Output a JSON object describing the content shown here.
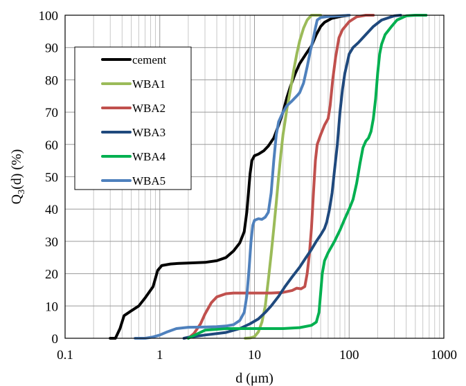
{
  "chart_data": {
    "type": "line",
    "title": "",
    "xlabel": "d (μm)",
    "ylabel": "Q3(d) (%)",
    "xscale": "log",
    "xlim": [
      0.1,
      1000
    ],
    "ylim": [
      0,
      100
    ],
    "x_ticks": [
      "0.1",
      "1",
      "10",
      "100",
      "1000"
    ],
    "y_ticks": [
      "0",
      "10",
      "20",
      "30",
      "40",
      "50",
      "60",
      "70",
      "80",
      "90",
      "100"
    ],
    "grid": true,
    "legend_position": "upper-left",
    "series": [
      {
        "name": "cement",
        "color": "#000000",
        "points": [
          [
            0.3,
            0
          ],
          [
            0.34,
            0
          ],
          [
            0.38,
            3
          ],
          [
            0.42,
            7
          ],
          [
            0.5,
            8.5
          ],
          [
            0.6,
            10
          ],
          [
            0.7,
            12.5
          ],
          [
            0.85,
            16
          ],
          [
            0.95,
            21
          ],
          [
            1.05,
            22.5
          ],
          [
            1.3,
            23
          ],
          [
            1.6,
            23.2
          ],
          [
            2,
            23.3
          ],
          [
            3,
            23.5
          ],
          [
            4,
            24
          ],
          [
            5,
            25
          ],
          [
            6,
            27
          ],
          [
            7,
            29.5
          ],
          [
            7.8,
            33
          ],
          [
            8.3,
            39
          ],
          [
            8.7,
            46
          ],
          [
            9,
            51
          ],
          [
            9.4,
            55
          ],
          [
            10,
            56.5
          ],
          [
            11,
            57
          ],
          [
            12.5,
            58
          ],
          [
            14,
            59.5
          ],
          [
            16,
            62
          ],
          [
            18,
            66
          ],
          [
            20,
            70
          ],
          [
            22,
            74.5
          ],
          [
            24,
            78
          ],
          [
            27,
            82
          ],
          [
            30,
            85
          ],
          [
            35,
            88
          ],
          [
            40,
            90.5
          ],
          [
            45,
            94
          ],
          [
            50,
            96.5
          ],
          [
            55,
            97.8
          ],
          [
            65,
            99
          ],
          [
            80,
            99.6
          ],
          [
            100,
            100
          ]
        ]
      },
      {
        "name": "WBA1",
        "color": "#9BBB59",
        "points": [
          [
            8,
            0
          ],
          [
            9,
            0.1
          ],
          [
            10,
            0.5
          ],
          [
            11,
            2
          ],
          [
            12,
            5
          ],
          [
            13,
            10
          ],
          [
            14,
            18
          ],
          [
            15,
            26
          ],
          [
            16,
            34
          ],
          [
            17,
            42
          ],
          [
            18,
            50
          ],
          [
            19,
            57
          ],
          [
            20,
            63
          ],
          [
            21,
            67
          ],
          [
            22,
            71
          ],
          [
            24,
            77
          ],
          [
            26,
            83
          ],
          [
            28,
            88
          ],
          [
            30,
            92
          ],
          [
            33,
            96
          ],
          [
            36,
            98.5
          ],
          [
            40,
            100
          ],
          [
            50,
            100
          ]
        ]
      },
      {
        "name": "WBA2",
        "color": "#C0504D",
        "points": [
          [
            2,
            0
          ],
          [
            2.3,
            1.5
          ],
          [
            2.7,
            4.5
          ],
          [
            3,
            7.5
          ],
          [
            3.5,
            11
          ],
          [
            4,
            12.8
          ],
          [
            5,
            13.8
          ],
          [
            6,
            14
          ],
          [
            8,
            14
          ],
          [
            10,
            14
          ],
          [
            15,
            14
          ],
          [
            20,
            14.2
          ],
          [
            25,
            14.8
          ],
          [
            28,
            15.5
          ],
          [
            31,
            15.3
          ],
          [
            34,
            16
          ],
          [
            36,
            20
          ],
          [
            38,
            26
          ],
          [
            40,
            34
          ],
          [
            42,
            45
          ],
          [
            44,
            55
          ],
          [
            46,
            60
          ],
          [
            50,
            63
          ],
          [
            55,
            66
          ],
          [
            60,
            68
          ],
          [
            63,
            72
          ],
          [
            67,
            80
          ],
          [
            72,
            87
          ],
          [
            78,
            93
          ],
          [
            85,
            95.5
          ],
          [
            100,
            98
          ],
          [
            120,
            99.5
          ],
          [
            150,
            100
          ],
          [
            180,
            100
          ]
        ]
      },
      {
        "name": "WBA3",
        "color": "#1F497D",
        "points": [
          [
            1.8,
            0
          ],
          [
            2,
            0.3
          ],
          [
            3,
            1
          ],
          [
            5,
            1.8
          ],
          [
            7,
            3
          ],
          [
            9,
            4.5
          ],
          [
            11,
            6
          ],
          [
            13,
            8
          ],
          [
            15,
            10
          ],
          [
            18,
            13
          ],
          [
            21,
            16
          ],
          [
            25,
            19
          ],
          [
            30,
            22
          ],
          [
            35,
            25
          ],
          [
            40,
            27.5
          ],
          [
            45,
            30
          ],
          [
            50,
            32
          ],
          [
            55,
            34
          ],
          [
            58,
            36
          ],
          [
            62,
            40
          ],
          [
            66,
            45
          ],
          [
            70,
            52
          ],
          [
            75,
            60
          ],
          [
            80,
            70
          ],
          [
            85,
            77
          ],
          [
            90,
            82
          ],
          [
            95,
            85
          ],
          [
            100,
            88
          ],
          [
            110,
            90
          ],
          [
            125,
            91.5
          ],
          [
            150,
            94
          ],
          [
            180,
            96.5
          ],
          [
            220,
            98.5
          ],
          [
            300,
            99.8
          ],
          [
            350,
            100
          ]
        ]
      },
      {
        "name": "WBA4",
        "color": "#00B050",
        "points": [
          [
            2,
            0
          ],
          [
            3,
            2.5
          ],
          [
            5,
            3
          ],
          [
            10,
            3
          ],
          [
            20,
            3
          ],
          [
            30,
            3.3
          ],
          [
            40,
            4
          ],
          [
            45,
            5
          ],
          [
            48,
            8
          ],
          [
            50,
            14
          ],
          [
            52,
            20
          ],
          [
            55,
            24
          ],
          [
            60,
            26.5
          ],
          [
            70,
            30
          ],
          [
            80,
            33.5
          ],
          [
            90,
            37
          ],
          [
            100,
            40
          ],
          [
            110,
            43
          ],
          [
            120,
            48
          ],
          [
            130,
            54
          ],
          [
            140,
            59
          ],
          [
            150,
            61
          ],
          [
            160,
            62
          ],
          [
            170,
            64
          ],
          [
            180,
            68
          ],
          [
            190,
            74
          ],
          [
            200,
            82
          ],
          [
            210,
            88
          ],
          [
            220,
            91
          ],
          [
            240,
            94
          ],
          [
            280,
            96.5
          ],
          [
            320,
            98.5
          ],
          [
            400,
            99.8
          ],
          [
            500,
            100
          ],
          [
            650,
            100
          ]
        ]
      },
      {
        "name": "WBA5",
        "color": "#4F81BD",
        "points": [
          [
            0.55,
            0
          ],
          [
            0.7,
            0
          ],
          [
            0.85,
            0.4
          ],
          [
            1,
            1
          ],
          [
            1.2,
            2
          ],
          [
            1.5,
            3
          ],
          [
            2,
            3.4
          ],
          [
            3,
            3.5
          ],
          [
            4,
            3.6
          ],
          [
            5,
            3.8
          ],
          [
            6,
            4.2
          ],
          [
            7,
            5.5
          ],
          [
            7.8,
            8
          ],
          [
            8.3,
            13
          ],
          [
            8.8,
            22
          ],
          [
            9.2,
            30
          ],
          [
            9.6,
            35
          ],
          [
            10,
            36.5
          ],
          [
            11,
            37
          ],
          [
            12,
            36.8
          ],
          [
            13,
            37.5
          ],
          [
            14,
            39
          ],
          [
            15,
            45
          ],
          [
            16,
            55
          ],
          [
            17,
            63
          ],
          [
            18,
            67
          ],
          [
            20,
            70
          ],
          [
            22,
            72
          ],
          [
            25,
            73.5
          ],
          [
            28,
            75
          ],
          [
            30,
            76
          ],
          [
            33,
            79
          ],
          [
            36,
            84
          ],
          [
            39,
            89
          ],
          [
            42,
            93
          ],
          [
            44,
            96
          ],
          [
            46,
            98.5
          ],
          [
            50,
            99.3
          ],
          [
            60,
            99.6
          ],
          [
            80,
            99.8
          ],
          [
            100,
            100
          ]
        ]
      }
    ]
  }
}
